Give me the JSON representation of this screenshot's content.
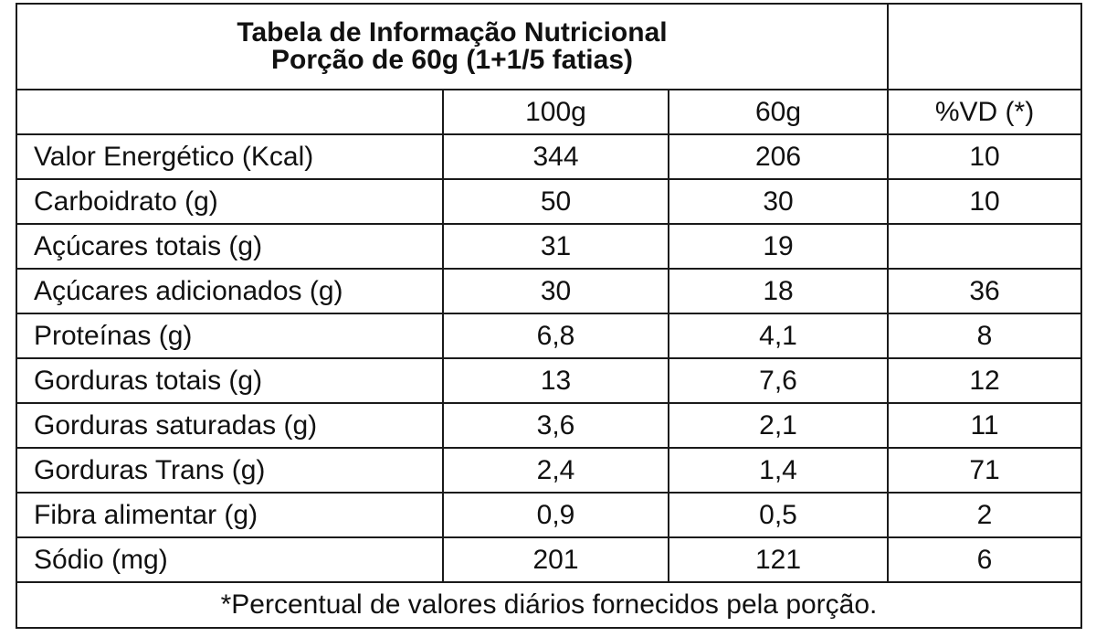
{
  "title": {
    "line1": "Tabela de Informação Nutricional",
    "line2": "Porção de 60g (1+1/5 fatias)"
  },
  "columns": {
    "per100": "100g",
    "per60": "60g",
    "vd": "%VD (*)"
  },
  "rows": [
    {
      "name": "Valor Energético (Kcal)",
      "per100": "344",
      "per60": "206",
      "vd": "10"
    },
    {
      "name": "Carboidrato (g)",
      "per100": "50",
      "per60": "30",
      "vd": "10"
    },
    {
      "name": "Açúcares totais (g)",
      "per100": "31",
      "per60": "19",
      "vd": ""
    },
    {
      "name": "Açúcares adicionados (g)",
      "per100": "30",
      "per60": "18",
      "vd": "36"
    },
    {
      "name": "Proteínas (g)",
      "per100": "6,8",
      "per60": "4,1",
      "vd": "8"
    },
    {
      "name": "Gorduras totais (g)",
      "per100": "13",
      "per60": "7,6",
      "vd": "12"
    },
    {
      "name": "Gorduras saturadas (g)",
      "per100": "3,6",
      "per60": "2,1",
      "vd": "11"
    },
    {
      "name": "Gorduras Trans (g)",
      "per100": "2,4",
      "per60": "1,4",
      "vd": "71"
    },
    {
      "name": "Fibra alimentar (g)",
      "per100": "0,9",
      "per60": "0,5",
      "vd": "2"
    },
    {
      "name": "Sódio (mg)",
      "per100": "201",
      "per60": "121",
      "vd": "6"
    }
  ],
  "footnote": "*Percentual de valores diários fornecidos pela porção."
}
